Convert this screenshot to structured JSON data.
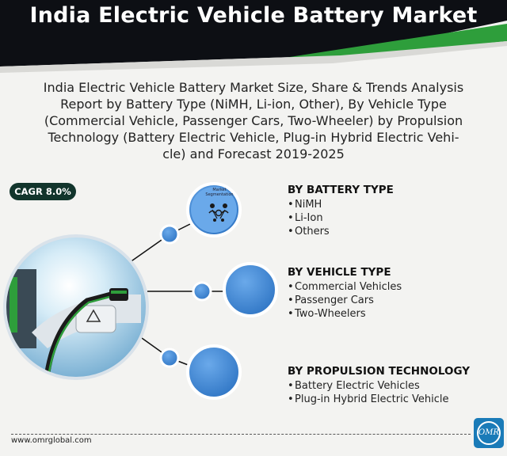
{
  "header": {
    "title": "India Electric Vehicle Battery Market"
  },
  "subtitle_lines": [
    "India Electric Vehicle Battery Market Size, Share & Trends Analysis",
    "Report by Battery Type (NiMH, Li-ion, Other), By Vehicle Type",
    "(Commercial Vehicle, Passenger Cars, Two-Wheeler) by Propulsion",
    "Technology (Battery Electric Vehicle, Plug-in Hybrid Electric Vehi-",
    "cle) and Forecast 2019-2025"
  ],
  "cagr_badge": "CAGR 8.0%",
  "hub": {
    "label_lines": [
      "Market",
      "Segmentation"
    ],
    "icon": "people-network-icon"
  },
  "segments": [
    {
      "title": "BY BATTERY TYPE",
      "items": [
        "NiMH",
        "Li-Ion",
        "Others"
      ]
    },
    {
      "title": "BY VEHICLE TYPE",
      "items": [
        "Commercial Vehicles",
        "Passenger Cars",
        "Two-Wheelers"
      ]
    },
    {
      "title": "BY PROPULSION TECHNOLOGY",
      "items": [
        "Battery Electric Vehicles",
        "Plug-in Hybrid Electric Vehicle"
      ]
    }
  ],
  "bullet": "•",
  "footer": {
    "url": "www.omrglobal.com",
    "logo_text": "OMR"
  },
  "colors": {
    "banner_dark": "#0d0f14",
    "banner_green": "#2e9e3b",
    "circle_blue": "#3f87d6",
    "circle_ring": "#1f3a5c",
    "badge_bg": "#12352c",
    "logo_blue": "#1a7bb8"
  }
}
